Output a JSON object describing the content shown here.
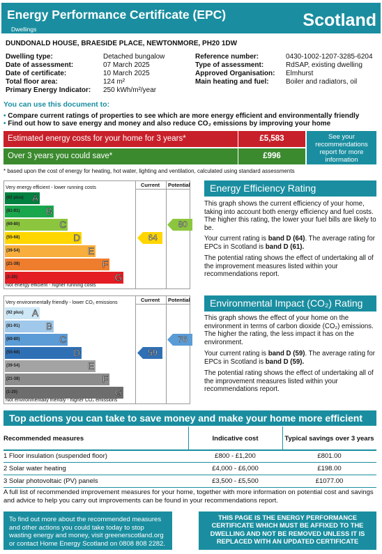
{
  "header": {
    "title": "Energy Performance Certificate (EPC)",
    "subtitle": "Dwellings",
    "country": "Scotland"
  },
  "address": "DUNDONALD HOUSE,  BRAESIDE PLACE, NEWTONMORE, PH20 1DW",
  "property": {
    "left": [
      {
        "label": "Dwelling type:",
        "value": "Detached bungalow"
      },
      {
        "label": "Date of assessment:",
        "value": "07 March 2025"
      },
      {
        "label": "Date of certificate:",
        "value": "10 March 2025"
      },
      {
        "label": "Total floor area:",
        "value": "124 m²"
      },
      {
        "label": "Primary Energy Indicator:",
        "value": "250 kWh/m²/year"
      }
    ],
    "right": [
      {
        "label": "Reference number:",
        "value": "0430-1002-1207-3285-6204"
      },
      {
        "label": "Type of assessment:",
        "value": "RdSAP, existing dwelling"
      },
      {
        "label": "Approved Organisation:",
        "value": "Elmhurst"
      },
      {
        "label": "Main heating and fuel:",
        "value": "Boiler and radiators, oil"
      }
    ]
  },
  "uses": {
    "title": "You can use this document to:",
    "items": [
      "Compare current ratings of properties to see which are more energy efficient and environmentally friendly",
      "Find out how to save energy and money and also reduce CO₂ emissions by improving your home"
    ]
  },
  "costs": {
    "row1_label": "Estimated energy costs for your home for 3 years*",
    "row1_value": "£5,583",
    "row2_label": "Over 3 years you could save*",
    "row2_value": "£996",
    "side_note": "See your recommendations report for more information",
    "footnote": "* based upon the cost of energy for heating, hot water, lighting and ventilation, calculated using standard assessments"
  },
  "ee_chart": {
    "col_current": "Current",
    "col_potential": "Potential",
    "top_caption": "Very energy efficient - lower running costs",
    "bottom_caption": "Not energy efficient - higher running costs",
    "bands": [
      {
        "range": "(92 plus)",
        "letter": "A",
        "color": "#00813f"
      },
      {
        "range": "(81-91)",
        "letter": "B",
        "color": "#19a64c"
      },
      {
        "range": "(69-80)",
        "letter": "C",
        "color": "#8cc63f"
      },
      {
        "range": "(55-68)",
        "letter": "D",
        "color": "#ffd600"
      },
      {
        "range": "(39-54)",
        "letter": "E",
        "color": "#f7ae3c"
      },
      {
        "range": "(21-38)",
        "letter": "F",
        "color": "#ef7d2e"
      },
      {
        "range": "(1-20)",
        "letter": "G",
        "color": "#e31d23"
      }
    ],
    "current": "64",
    "current_color": "#ffd600",
    "potential": "80",
    "potential_color": "#8cc63f"
  },
  "ei_chart": {
    "col_current": "Current",
    "col_potential": "Potential",
    "top_caption": "Very environmentally friendly - lower CO₂ emissions",
    "bottom_caption": "Not environmentally friendly - higher CO₂ emissions",
    "bands": [
      {
        "range": "(92 plus)",
        "letter": "A",
        "color": "#cde7f6"
      },
      {
        "range": "(81-91)",
        "letter": "B",
        "color": "#9fc8ea"
      },
      {
        "range": "(69-80)",
        "letter": "C",
        "color": "#5b9bd6"
      },
      {
        "range": "(55-68)",
        "letter": "D",
        "color": "#2f70b5"
      },
      {
        "range": "(39-54)",
        "letter": "E",
        "color": "#a3a3a3"
      },
      {
        "range": "(21-38)",
        "letter": "F",
        "color": "#8c8c8c"
      },
      {
        "range": "(1-20)",
        "letter": "G",
        "color": "#6d6d6d"
      }
    ],
    "current": "59",
    "current_color": "#2f70b5",
    "potential": "76",
    "potential_color": "#5b9bd6"
  },
  "ee_text": {
    "heading": "Energy Efficiency Rating",
    "p1": "This graph shows the current efficiency of your home, taking into account both energy efficiency and fuel costs. The higher this rating, the lower your fuel bills are likely to be.",
    "p2a": "Your current rating is ",
    "p2b": "band D (64)",
    "p2c": ". The average rating for EPCs in Scotland is ",
    "p2d": "band D (61).",
    "p3": "The potential rating shows the effect of undertaking all of the improvement measures listed within your recommendations report."
  },
  "ei_text": {
    "heading": "Environmental Impact (CO₂) Rating",
    "p1": "This graph shows the effect of your home on the environment in terms of carbon dioxide (CO₂) emissions. The higher the rating, the less impact it has on the environment.",
    "p2a": "Your current rating is ",
    "p2b": "band D (59)",
    "p2c": ". The average rating for EPCs in Scotland is ",
    "p2d": "band D (59).",
    "p3": "The potential rating shows the effect of undertaking all of the improvement measures listed within your recommendations report."
  },
  "actions": {
    "heading": "Top actions you can take to save money and make your home more efficient",
    "col1": "Recommended measures",
    "col2": "Indicative cost",
    "col3": "Typical savings over 3 years",
    "rows": [
      [
        "1 Floor insulation (suspended floor)",
        "£800 - £1,200",
        "£801.00"
      ],
      [
        "2 Solar water heating",
        "£4,000 - £6,000",
        "£198.00"
      ],
      [
        "3 Solar photovoltaic (PV) panels",
        "£3,500 - £5,500",
        "£1077.00"
      ]
    ],
    "note": "A full list of recommended improvement measures for your home, together with more information on potential cost and savings and advice to help you carry out improvements can be found in your recommendations report."
  },
  "footer": {
    "left": "To find out more about the recommended measures and other actions you could take today to stop wasting energy and money, visit greenerscotland.org or contact Home Energy Scotland on 0808 808 2282.",
    "right": "THIS PAGE IS THE ENERGY PERFORMANCE CERTIFICATE WHICH MUST BE AFFIXED TO THE DWELLING AND NOT BE REMOVED UNLESS IT IS REPLACED WITH AN UPDATED CERTIFICATE"
  },
  "colors": {
    "teal": "#1a8ea0",
    "cost_red": "#c8202a",
    "cost_green": "#3b8a2e"
  }
}
